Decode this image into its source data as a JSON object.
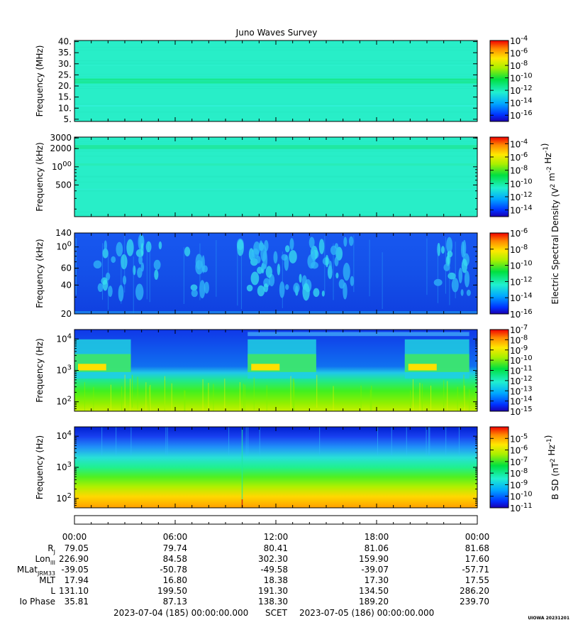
{
  "title": "Juno Waves Survey",
  "colors": {
    "background": "#29f0c8",
    "deep_blue": "#1248f0"
  },
  "chart_data": [
    {
      "type": "heatmap",
      "ylabel": "Frequency (MHz)",
      "y_scale": "linear",
      "ylim": [
        4,
        40.5
      ],
      "yticks": [
        "5.",
        "10.",
        "15.",
        "20.",
        "25.",
        "30.",
        "35.",
        "40."
      ],
      "ytick_values": [
        5,
        10,
        15,
        20,
        25,
        30,
        35,
        40
      ],
      "style": "hf_mhz",
      "colorbar": {
        "ticks": [
          "10-4",
          "10-6",
          "10-8",
          "10-10",
          "10-12",
          "10-14",
          "10-16"
        ],
        "exps": [
          -4,
          -6,
          -8,
          -10,
          -12,
          -14,
          -16
        ],
        "range": [
          -17,
          -4
        ]
      }
    },
    {
      "type": "heatmap",
      "ylabel": "Frequency (kHz)",
      "y_scale": "log",
      "ylim": [
        150,
        3100
      ],
      "yticks": [
        "3000",
        "2000",
        "1000",
        "500"
      ],
      "ytick_values": [
        3000,
        2000,
        1000,
        500
      ],
      "style": "hf_khz",
      "colorbar": {
        "ticks": [
          "10-4",
          "10-6",
          "10-8",
          "10-10",
          "10-12",
          "10-14"
        ],
        "exps": [
          -4,
          -6,
          -8,
          -10,
          -12,
          -14
        ],
        "range": [
          -15,
          -3
        ],
        "label": "Electric Spectral Density (V2 m-2 Hz-1)"
      }
    },
    {
      "type": "heatmap",
      "ylabel": "Frequency (kHz)",
      "y_scale": "log",
      "ylim": [
        20,
        140
      ],
      "yticks": [
        "140",
        "100",
        "60",
        "40",
        "20"
      ],
      "ytick_values": [
        140,
        100,
        60,
        40,
        20
      ],
      "style": "lf_khz",
      "colorbar": {
        "ticks": [
          "10-6",
          "10-8",
          "10-10",
          "10-12",
          "10-14",
          "10-16"
        ],
        "exps": [
          -6,
          -8,
          -10,
          -12,
          -14,
          -16
        ],
        "range": [
          -16,
          -6
        ]
      }
    },
    {
      "type": "heatmap",
      "ylabel": "Frequency (Hz)",
      "y_scale": "log",
      "ylim": [
        50,
        20000
      ],
      "yticks": [
        "104",
        "103",
        "102"
      ],
      "ytick_values": [
        10000,
        1000,
        100
      ],
      "style": "e_hz",
      "colorbar": {
        "ticks": [
          "10-7",
          "10-8",
          "10-9",
          "10-10",
          "10-11",
          "10-12",
          "10-13",
          "10-14",
          "10-15"
        ],
        "exps": [
          -7,
          -8,
          -9,
          -10,
          -11,
          -12,
          -13,
          -14,
          -15
        ],
        "range": [
          -15,
          -7
        ]
      }
    },
    {
      "type": "heatmap",
      "ylabel": "Frequency (Hz)",
      "y_scale": "log",
      "ylim": [
        50,
        20000
      ],
      "yticks": [
        "104",
        "103",
        "102"
      ],
      "ytick_values": [
        10000,
        1000,
        100
      ],
      "style": "b_hz",
      "colorbar": {
        "ticks": [
          "10-5",
          "10-6",
          "10-7",
          "10-8",
          "10-9",
          "10-10",
          "10-11"
        ],
        "exps": [
          -5,
          -6,
          -7,
          -8,
          -9,
          -10,
          -11
        ],
        "range": [
          -11,
          -4
        ],
        "label": "B SD (nT2 Hz-1)"
      }
    }
  ],
  "ephemeris": {
    "row_labels": [
      "RJ",
      "LonIII",
      "MLatJRM33",
      "MLT",
      "L",
      "Io Phase"
    ],
    "times": [
      "00:00",
      "06:00",
      "12:00",
      "18:00",
      "00:00"
    ],
    "columns": [
      [
        "79.05",
        "226.90",
        "-39.05",
        "17.94",
        "131.10",
        "35.81"
      ],
      [
        "79.74",
        "84.58",
        "-50.78",
        "16.80",
        "199.50",
        "87.13"
      ],
      [
        "80.41",
        "302.30",
        "-49.58",
        "18.38",
        "191.30",
        "138.30"
      ],
      [
        "81.06",
        "159.90",
        "-39.07",
        "17.30",
        "134.50",
        "189.20"
      ],
      [
        "81.68",
        "17.60",
        "-57.71",
        "17.55",
        "286.20",
        "239.70"
      ]
    ]
  },
  "footer": {
    "start": "2023-07-04 (185) 00:00:00.000",
    "scet": "SCET",
    "end": "2023-07-05 (186) 00:00:00.000"
  },
  "credit": "UIOWA 20231201"
}
